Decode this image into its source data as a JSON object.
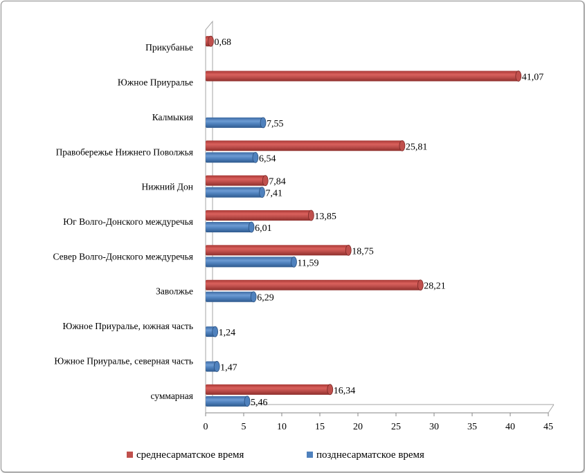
{
  "chart_data": {
    "type": "bar",
    "orientation": "horizontal",
    "categories": [
      "суммарная",
      "Южное Приуралье, северная  часть",
      "Южное Приуралье, южная часть",
      "Заволжье",
      "Север Волго-Донского междуречья",
      "Юг Волго-Донского междуречья",
      "Нижний Дон",
      "Правобережье Нижнего Поволжья",
      "Калмыкия",
      "Южное Приуралье",
      "Прикубанье"
    ],
    "series": [
      {
        "name": "среднесарматское время",
        "color": "#c0504d",
        "values": [
          16.34,
          null,
          null,
          28.21,
          18.75,
          13.85,
          7.84,
          25.81,
          null,
          41.07,
          0.68
        ],
        "labels": [
          "16,34",
          "",
          "",
          "28,21",
          "18,75",
          "13,85",
          "7,84",
          "25,81",
          "",
          "41,07",
          "0,68"
        ]
      },
      {
        "name": "позднесарматское время",
        "color": "#4f81bd",
        "values": [
          5.46,
          1.47,
          1.24,
          6.29,
          11.59,
          6.01,
          7.41,
          6.54,
          7.55,
          null,
          null
        ],
        "labels": [
          "5,46",
          "1,47",
          "1,24",
          "6,29",
          "11,59",
          "6,01",
          "7,41",
          "6,54",
          "7,55",
          "",
          ""
        ]
      }
    ],
    "xlim": [
      0,
      45
    ],
    "xticks": [
      0,
      5,
      10,
      15,
      20,
      25,
      30,
      35,
      40,
      45
    ],
    "xticklabels": [
      "0",
      "5",
      "10",
      "15",
      "20",
      "25",
      "30",
      "35",
      "40",
      "45"
    ],
    "grid": false,
    "legend_position": "bottom",
    "style": "3d-cylinder"
  }
}
